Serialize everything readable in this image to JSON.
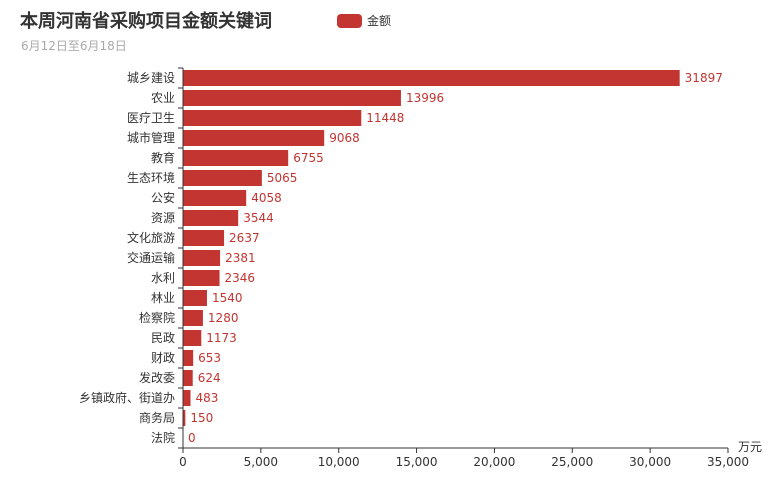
{
  "colors": {
    "bar": "#c23531",
    "axis": "#333333",
    "text": "#333333"
  },
  "chart_data": {
    "type": "bar",
    "orientation": "horizontal",
    "title": "本周河南省采购项目金额关键词",
    "subtitle": "6月12日至6月18日",
    "x_unit": "万元",
    "xlim": [
      0,
      35000
    ],
    "x_ticks": [
      0,
      5000,
      10000,
      15000,
      20000,
      25000,
      30000,
      35000
    ],
    "x_tick_labels": [
      "0",
      "5,000",
      "10,000",
      "15,000",
      "20,000",
      "25,000",
      "30,000",
      "35,000"
    ],
    "grid": false,
    "legend_position": "top-center",
    "series": [
      {
        "name": "金额",
        "values": [
          31897,
          13996,
          11448,
          9068,
          6755,
          5065,
          4058,
          3544,
          2637,
          2381,
          2346,
          1540,
          1280,
          1173,
          653,
          624,
          483,
          150,
          0
        ]
      }
    ],
    "categories": [
      "城乡建设",
      "农业",
      "医疗卫生",
      "城市管理",
      "教育",
      "生态环境",
      "公安",
      "资源",
      "文化旅游",
      "交通运输",
      "水利",
      "林业",
      "检察院",
      "民政",
      "财政",
      "发改委",
      "乡镇政府、街道办",
      "商务局",
      "法院"
    ]
  }
}
